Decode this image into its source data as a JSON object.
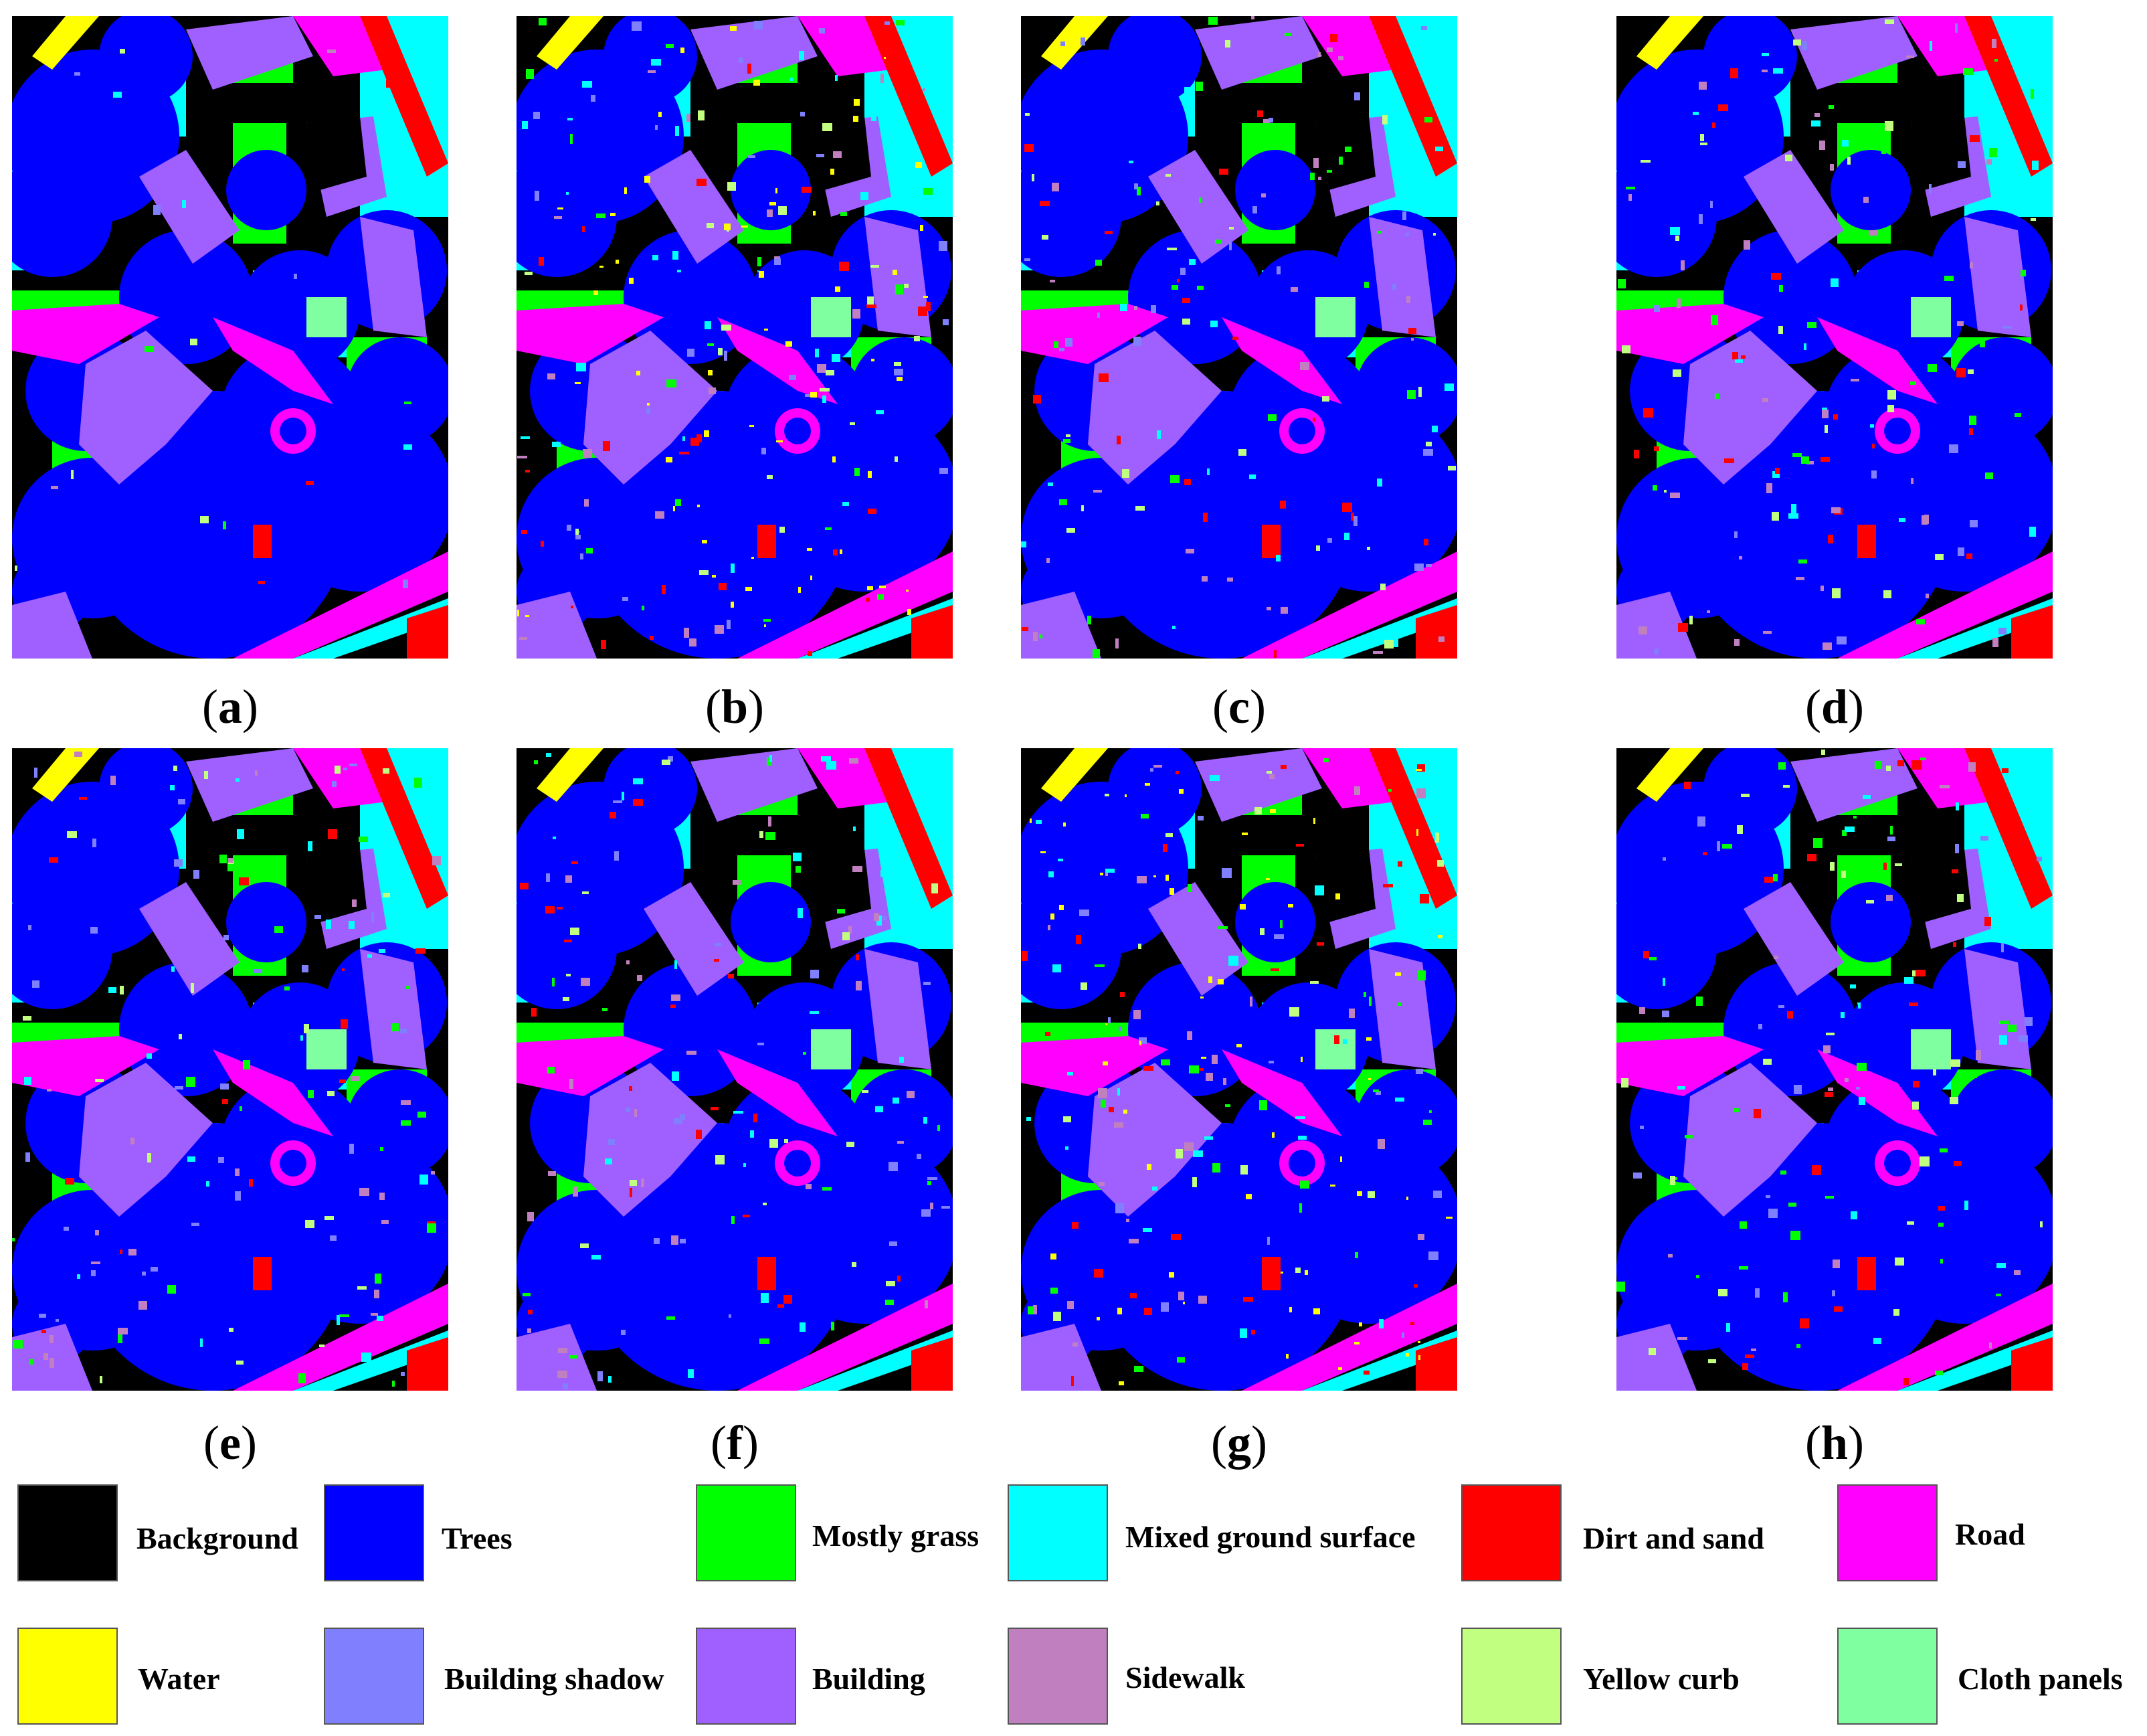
{
  "panels": [
    {
      "label": "a"
    },
    {
      "label": "b"
    },
    {
      "label": "c"
    },
    {
      "label": "d"
    },
    {
      "label": "e"
    },
    {
      "label": "f"
    },
    {
      "label": "g"
    },
    {
      "label": "h"
    }
  ],
  "legend": [
    {
      "name": "Background",
      "color": "#000000"
    },
    {
      "name": "Trees",
      "color": "#0000ff"
    },
    {
      "name": "Mostly grass",
      "color": "#00ff00"
    },
    {
      "name": "Mixed ground surface",
      "color": "#00ffff"
    },
    {
      "name": "Dirt and sand",
      "color": "#ff0000"
    },
    {
      "name": "Road",
      "color": "#ff00ff"
    },
    {
      "name": "Water",
      "color": "#ffff00"
    },
    {
      "name": "Building shadow",
      "color": "#8080ff"
    },
    {
      "name": "Building",
      "color": "#a060ff"
    },
    {
      "name": "Sidewalk",
      "color": "#c080c0"
    },
    {
      "name": "Yellow curb",
      "color": "#c0ff80"
    },
    {
      "name": "Cloth panels",
      "color": "#80ffa0"
    }
  ]
}
